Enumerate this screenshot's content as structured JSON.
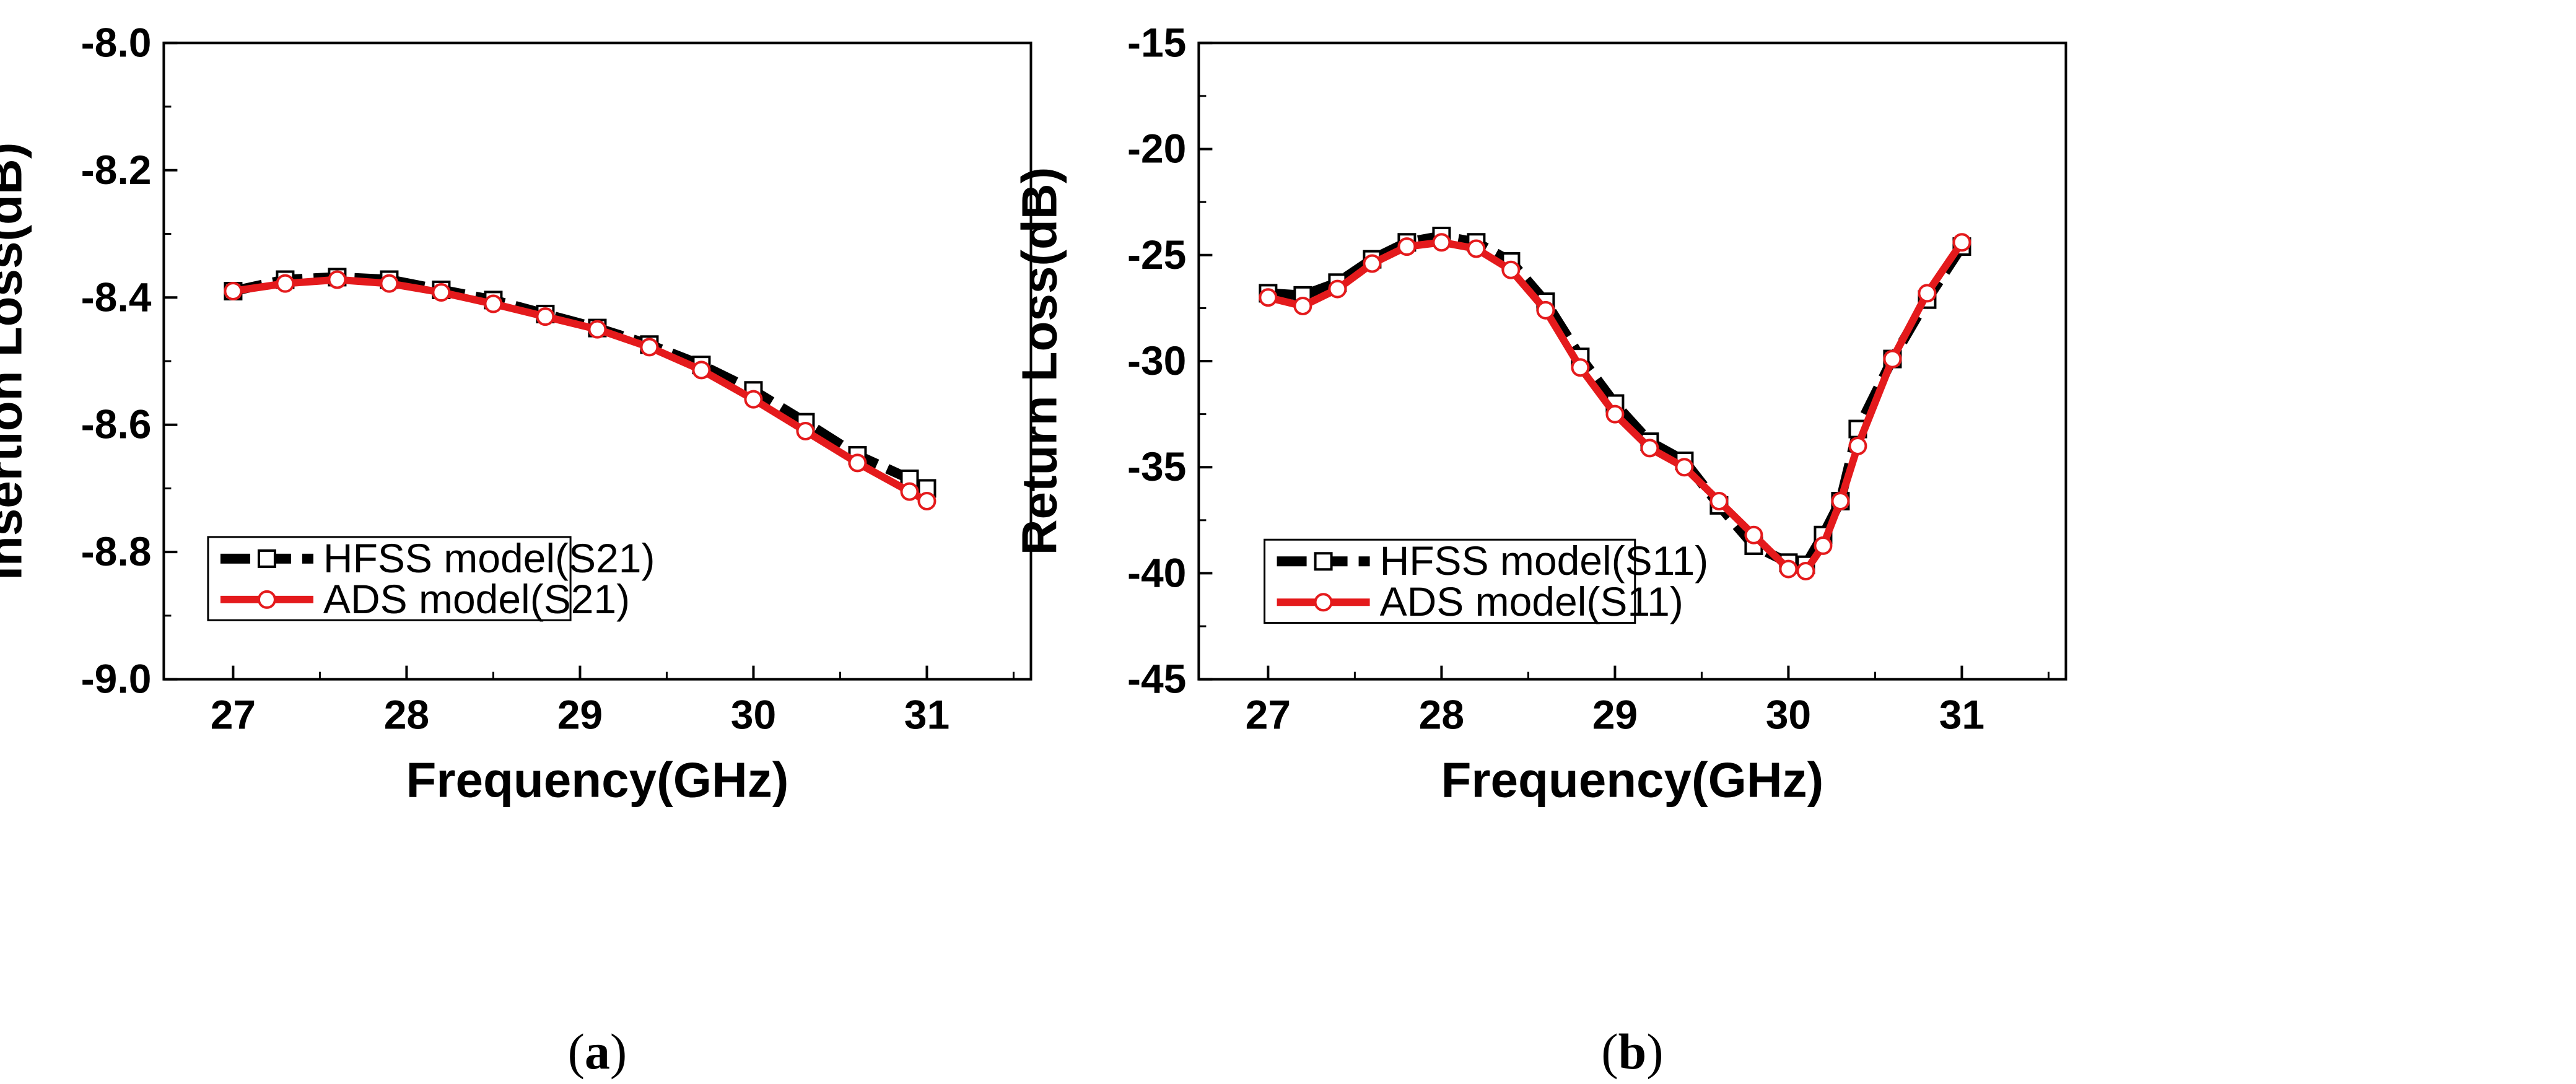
{
  "chart_data": [
    {
      "type": "line",
      "panel_label": "a",
      "xlabel": "Frequency(GHz)",
      "ylabel": "Insertion Loss(dB)",
      "xlim": [
        26.6,
        31.6
      ],
      "ylim": [
        -9.0,
        -8.0
      ],
      "xticks": [
        27,
        28,
        29,
        30,
        31
      ],
      "xtick_labels": [
        "27",
        "28",
        "29",
        "30",
        "31"
      ],
      "yticks": [
        -9.0,
        -8.8,
        -8.6,
        -8.4,
        -8.2,
        -8.0
      ],
      "ytick_labels": [
        "-9.0",
        "-8.8",
        "-8.6",
        "-8.4",
        "-8.2",
        "-8.0"
      ],
      "legend_position": "bottom-left",
      "series": [
        {
          "name": "HFSS model(S21)",
          "color": "#000000",
          "marker": "square",
          "x": [
            27.0,
            27.3,
            27.6,
            27.9,
            28.2,
            28.5,
            28.8,
            29.1,
            29.4,
            29.7,
            30.0,
            30.3,
            30.6,
            30.9,
            31.0
          ],
          "y": [
            -8.39,
            -8.372,
            -8.368,
            -8.372,
            -8.388,
            -8.404,
            -8.426,
            -8.448,
            -8.474,
            -8.506,
            -8.546,
            -8.596,
            -8.648,
            -8.685,
            -8.7
          ]
        },
        {
          "name": "ADS model(S21)",
          "color": "#e41a1c",
          "marker": "circle",
          "x": [
            27.0,
            27.3,
            27.6,
            27.9,
            28.2,
            28.5,
            28.8,
            29.1,
            29.4,
            29.7,
            30.0,
            30.3,
            30.6,
            30.9,
            31.0
          ],
          "y": [
            -8.39,
            -8.378,
            -8.372,
            -8.378,
            -8.392,
            -8.41,
            -8.43,
            -8.45,
            -8.478,
            -8.514,
            -8.56,
            -8.61,
            -8.66,
            -8.705,
            -8.72
          ]
        }
      ]
    },
    {
      "type": "line",
      "panel_label": "b",
      "xlabel": "Frequency(GHz)",
      "ylabel": "Return Loss(dB)",
      "xlim": [
        26.6,
        31.6
      ],
      "ylim": [
        -45,
        -15
      ],
      "xticks": [
        27,
        28,
        29,
        30,
        31
      ],
      "xtick_labels": [
        "27",
        "28",
        "29",
        "30",
        "31"
      ],
      "yticks": [
        -45,
        -40,
        -35,
        -30,
        -25,
        -20,
        -15
      ],
      "ytick_labels": [
        "-45",
        "-40",
        "-35",
        "-30",
        "-25",
        "-20",
        "-15"
      ],
      "legend_position": "bottom-left",
      "series": [
        {
          "name": "HFSS model(S11)",
          "color": "#000000",
          "marker": "square",
          "x": [
            27.0,
            27.2,
            27.4,
            27.6,
            27.8,
            28.0,
            28.2,
            28.4,
            28.6,
            28.8,
            29.0,
            29.2,
            29.4,
            29.6,
            29.8,
            30.0,
            30.1,
            30.2,
            30.3,
            30.4,
            30.6,
            30.8,
            31.0
          ],
          "y": [
            -26.8,
            -26.9,
            -26.3,
            -25.2,
            -24.4,
            -24.1,
            -24.4,
            -25.3,
            -27.2,
            -29.8,
            -32.0,
            -33.8,
            -34.7,
            -36.8,
            -38.7,
            -39.5,
            -39.6,
            -38.2,
            -36.6,
            -33.2,
            -29.9,
            -27.1,
            -24.6
          ]
        },
        {
          "name": "ADS model(S11)",
          "color": "#e41a1c",
          "marker": "circle",
          "x": [
            27.0,
            27.2,
            27.4,
            27.6,
            27.8,
            28.0,
            28.2,
            28.4,
            28.6,
            28.8,
            29.0,
            29.2,
            29.4,
            29.6,
            29.8,
            30.0,
            30.1,
            30.2,
            30.3,
            30.4,
            30.6,
            30.8,
            31.0
          ],
          "y": [
            -27.0,
            -27.4,
            -26.6,
            -25.4,
            -24.6,
            -24.4,
            -24.7,
            -25.7,
            -27.6,
            -30.3,
            -32.5,
            -34.1,
            -35.0,
            -36.6,
            -38.2,
            -39.8,
            -39.9,
            -38.7,
            -36.6,
            -34.0,
            -29.9,
            -26.8,
            -24.4
          ]
        }
      ]
    }
  ]
}
